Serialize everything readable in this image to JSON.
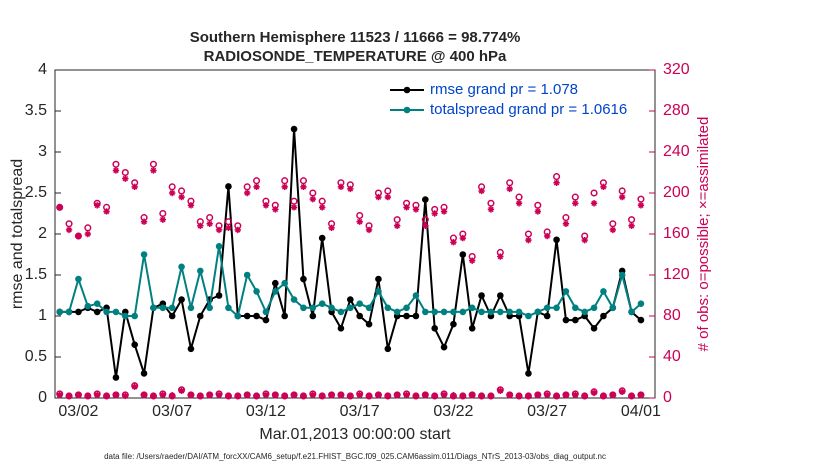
{
  "chart_data": {
    "type": "line",
    "title": "Southern Hemisphere 11523 / 11666 = 98.774%",
    "subtitle": "RADIOSONDE_TEMPERATURE @ 400 hPa",
    "xlabel": "Mar.01,2013 00:00:00 start",
    "ylabel": "rmse and totalspread",
    "y2label": "# of obs: o=possible; ×=assimilated",
    "footnote": "data file: /Users/raeder/DAI/ATM_forcXX/CAM6_setup/f.e21.FHIST_BGC.f09_025.CAM6assim.011/Diags_NTrS_2013-03/obs_diag_output.nc",
    "legend": "north",
    "grid": false,
    "xlim": [
      -0.25,
      31.75
    ],
    "xticks": [
      {
        "value": 1,
        "label": "03/02"
      },
      {
        "value": 6,
        "label": "03/07"
      },
      {
        "value": 11,
        "label": "03/12"
      },
      {
        "value": 16,
        "label": "03/17"
      },
      {
        "value": 21,
        "label": "03/22"
      },
      {
        "value": 26,
        "label": "03/27"
      },
      {
        "value": 31,
        "label": "04/01"
      }
    ],
    "ylim": [
      0,
      4
    ],
    "yticks": [
      0,
      0.5,
      1,
      1.5,
      2,
      2.5,
      3,
      3.5,
      4
    ],
    "y2lim": [
      0,
      320
    ],
    "y2ticks": [
      0,
      40,
      80,
      120,
      160,
      200,
      240,
      280,
      320
    ],
    "x": [
      0,
      0.5,
      1,
      1.5,
      2,
      2.5,
      3,
      3.5,
      4,
      4.5,
      5,
      5.5,
      6,
      6.5,
      7,
      7.5,
      8,
      8.5,
      9,
      9.5,
      10,
      10.5,
      11,
      11.5,
      12,
      12.5,
      13,
      13.5,
      14,
      14.5,
      15,
      15.5,
      16,
      16.5,
      17,
      17.5,
      18,
      18.5,
      19,
      19.5,
      20,
      20.5,
      21,
      21.5,
      22,
      22.5,
      23,
      23.5,
      24,
      24.5,
      25,
      25.5,
      26,
      26.5,
      27,
      27.5,
      28,
      28.5,
      29,
      29.5,
      30,
      30.5,
      31
    ],
    "series": [
      {
        "name": "rmse grand pr = 1.078",
        "color": "#000000",
        "marker": "dot",
        "values": [
          1.05,
          1.05,
          1.05,
          1.1,
          1.05,
          1.1,
          0.25,
          1.05,
          0.65,
          0.3,
          1.1,
          1.15,
          1.0,
          1.2,
          0.6,
          1.0,
          1.2,
          1.25,
          2.58,
          1.0,
          1.0,
          1.0,
          0.95,
          1.4,
          1.0,
          3.28,
          1.45,
          1.0,
          1.95,
          1.05,
          0.85,
          1.2,
          1.0,
          0.9,
          1.45,
          0.6,
          1.0,
          1.0,
          1.0,
          2.42,
          0.85,
          0.62,
          0.9,
          1.75,
          0.85,
          1.25,
          1.0,
          1.25,
          1.0,
          1.0,
          0.3,
          1.05,
          1.0,
          1.93,
          0.95,
          0.95,
          1.0,
          0.85,
          1.0,
          1.1,
          1.55,
          1.05,
          0.95
        ]
      },
      {
        "name": "totalspread grand pr = 1.0616",
        "color": "#008080",
        "marker": "dot",
        "values": [
          1.05,
          1.05,
          1.45,
          1.12,
          1.15,
          1.05,
          1.05,
          1.0,
          1.0,
          1.75,
          1.1,
          1.1,
          1.1,
          1.6,
          1.1,
          1.55,
          1.1,
          1.85,
          1.1,
          1.0,
          1.5,
          1.3,
          1.05,
          1.3,
          1.4,
          1.2,
          1.1,
          1.1,
          1.15,
          1.1,
          1.05,
          1.1,
          1.15,
          1.1,
          1.3,
          1.1,
          1.05,
          1.1,
          1.25,
          1.05,
          1.05,
          1.05,
          1.05,
          1.05,
          1.1,
          1.05,
          1.05,
          1.05,
          1.05,
          1.05,
          1.0,
          1.05,
          1.1,
          1.1,
          1.3,
          1.1,
          1.05,
          1.1,
          1.3,
          1.1,
          1.5,
          1.05,
          1.15
        ]
      },
      {
        "color": "#cc0055",
        "marker": "circle",
        "axis": "y2",
        "values": [
          186,
          170,
          158,
          166,
          190,
          186,
          228,
          220,
          210,
          176,
          228,
          180,
          206,
          202,
          192,
          172,
          176,
          168,
          172,
          168,
          206,
          212,
          192,
          188,
          212,
          192,
          212,
          200,
          192,
          170,
          210,
          208,
          178,
          168,
          200,
          202,
          174,
          190,
          188,
          174,
          184,
          186,
          156,
          160,
          138,
          206,
          190,
          142,
          210,
          196,
          160,
          188,
          162,
          216,
          176,
          196,
          158,
          200,
          210,
          170,
          202,
          174,
          194
        ]
      },
      {
        "color": "#cc0055",
        "marker": "star",
        "axis": "y2",
        "values": [
          186,
          164,
          158,
          160,
          188,
          182,
          222,
          214,
          206,
          172,
          222,
          174,
          200,
          196,
          188,
          168,
          170,
          164,
          166,
          164,
          200,
          206,
          188,
          184,
          206,
          186,
          206,
          194,
          186,
          166,
          206,
          204,
          172,
          164,
          196,
          196,
          168,
          186,
          184,
          168,
          180,
          182,
          152,
          156,
          134,
          202,
          184,
          138,
          204,
          190,
          154,
          182,
          158,
          210,
          170,
          190,
          154,
          190,
          206,
          164,
          196,
          168,
          188
        ]
      },
      {
        "color": "#cc0055",
        "marker": "circle",
        "axis": "y2",
        "values": [
          4,
          2,
          3,
          2,
          4,
          2,
          3,
          3,
          12,
          3,
          2,
          4,
          2,
          8,
          3,
          2,
          3,
          4,
          2,
          2,
          3,
          2,
          4,
          3,
          2,
          3,
          2,
          4,
          2,
          3,
          3,
          2,
          4,
          2,
          3,
          2,
          3,
          4,
          2,
          3,
          2,
          4,
          2,
          2,
          3,
          2,
          2,
          8,
          3,
          2,
          2,
          3,
          4,
          2,
          3,
          4,
          2,
          6,
          2,
          3,
          7,
          2,
          3
        ]
      },
      {
        "color": "#cc0055",
        "marker": "star",
        "axis": "y2",
        "values": [
          3,
          2,
          3,
          2,
          3,
          2,
          3,
          2,
          11,
          3,
          2,
          3,
          2,
          7,
          3,
          2,
          3,
          3,
          2,
          2,
          3,
          2,
          3,
          3,
          2,
          3,
          2,
          3,
          2,
          3,
          3,
          2,
          3,
          2,
          3,
          2,
          3,
          3,
          2,
          3,
          2,
          3,
          2,
          2,
          3,
          2,
          2,
          7,
          3,
          2,
          2,
          3,
          3,
          2,
          3,
          3,
          2,
          5,
          2,
          3,
          6,
          2,
          3
        ]
      }
    ]
  }
}
